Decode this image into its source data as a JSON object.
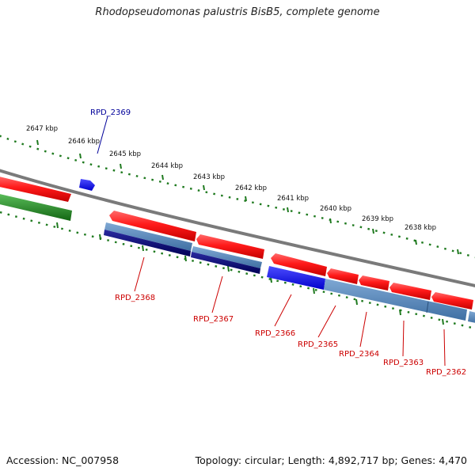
{
  "title": "Rhodopseudomonas palustris BisB5, complete genome",
  "footer": {
    "accession": "Accession: NC_007958",
    "summary": "Topology: circular; Length: 4,892,717 bp; Genes: 4,470"
  },
  "colors": {
    "forward_cds": "#ff1a1a",
    "reverse_light": "#4a7fb5",
    "reverse_dark": "#0a0a6e",
    "rna_blue": "#1010ee",
    "green": "#1e8a1e",
    "backbone": "#7a7a7a",
    "ruler": "#1f7a1f",
    "label_red": "#cc0000",
    "label_blue": "#000099"
  },
  "kbp_labels": [
    "2647 kbp",
    "2646 kbp",
    "2645 kbp",
    "2644 kbp",
    "2643 kbp",
    "2642 kbp",
    "2641 kbp",
    "2640 kbp",
    "2639 kbp",
    "2638 kbp"
  ],
  "gene_labels": [
    {
      "text": "RPD_2369",
      "color": "label_blue"
    },
    {
      "text": "RPD_2368",
      "color": "label_red"
    },
    {
      "text": "RPD_2367",
      "color": "label_red"
    },
    {
      "text": "RPD_2366",
      "color": "label_red"
    },
    {
      "text": "RPD_2365",
      "color": "label_red"
    },
    {
      "text": "RPD_2364",
      "color": "label_red"
    },
    {
      "text": "RPD_2363",
      "color": "label_red"
    },
    {
      "text": "RPD_2362",
      "color": "label_red"
    }
  ]
}
